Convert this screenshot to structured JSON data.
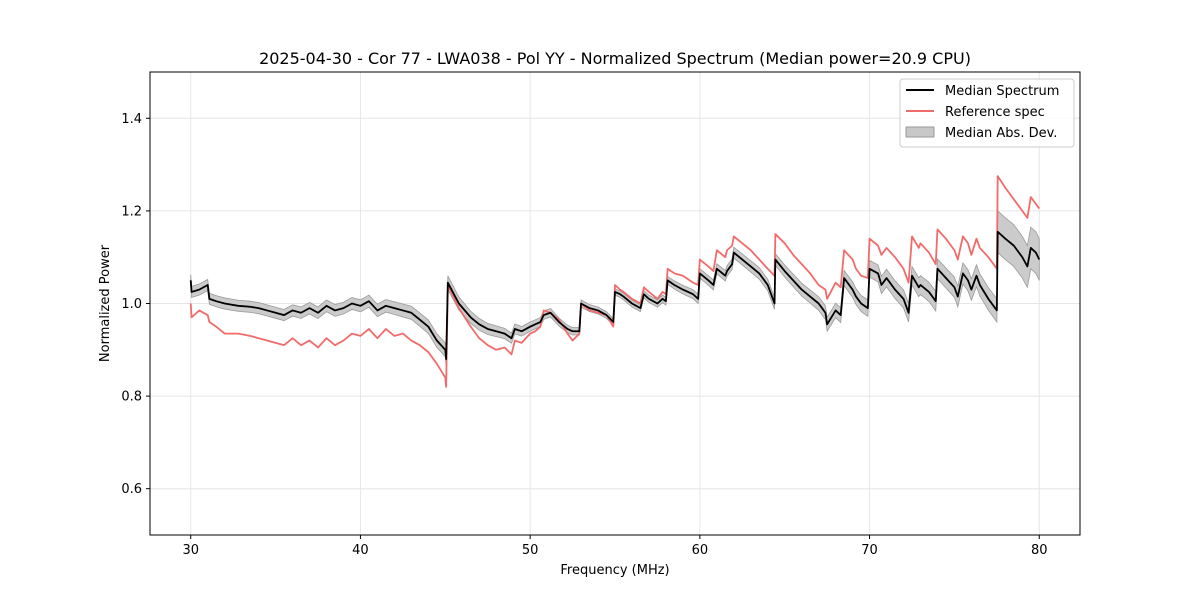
{
  "chart_data": {
    "type": "line",
    "title": "2025-04-30 - Cor 77 - LWA038 - Pol YY - Normalized Spectrum (Median power=20.9 CPU)",
    "xlabel": "Frequency (MHz)",
    "ylabel": "Normalized Power",
    "xlim": [
      27.6,
      82.4
    ],
    "ylim": [
      0.5,
      1.5
    ],
    "xticks": [
      30,
      40,
      50,
      60,
      70,
      80
    ],
    "yticks": [
      0.6,
      0.8,
      1.0,
      1.2,
      1.4
    ],
    "xtick_labels": [
      "30",
      "40",
      "50",
      "60",
      "70",
      "80"
    ],
    "ytick_labels": [
      "0.6",
      "0.8",
      "1.0",
      "1.2",
      "1.4"
    ],
    "grid": true,
    "legend_position": "top-right",
    "colors": {
      "median": "#000000",
      "reference": "#f26b6b",
      "mad_fill": "#c8c8c8",
      "mad_edge": "#9a9a9a"
    },
    "legend": [
      "Median Spectrum",
      "Reference spec",
      "Median Abs. Dev."
    ],
    "series": [
      {
        "name": "Median Spectrum",
        "x": [
          30.0,
          30.05,
          30.5,
          31.0,
          31.1,
          31.5,
          32.0,
          32.8,
          33.5,
          34.0,
          34.5,
          35.0,
          35.5,
          36.0,
          36.5,
          37.0,
          37.5,
          38.0,
          38.5,
          39.0,
          39.5,
          40.0,
          40.5,
          41.0,
          41.5,
          42.0,
          42.5,
          43.0,
          43.5,
          44.0,
          44.5,
          45.0,
          45.05,
          45.15,
          45.8,
          46.5,
          47.0,
          47.5,
          48.0,
          48.5,
          48.9,
          49.1,
          49.5,
          50.0,
          50.3,
          50.6,
          50.8,
          51.2,
          51.7,
          52.2,
          52.5,
          52.9,
          53.0,
          53.5,
          54.0,
          54.5,
          54.9,
          55.0,
          55.3,
          55.5,
          56.0,
          56.5,
          56.7,
          57.0,
          57.5,
          57.8,
          58.0,
          58.1,
          58.5,
          59.0,
          59.6,
          59.9,
          60.0,
          60.5,
          60.8,
          61.0,
          61.5,
          61.6,
          61.9,
          62.0,
          62.5,
          63.0,
          63.5,
          64.0,
          64.4,
          64.45,
          65.0,
          65.5,
          66.0,
          66.5,
          67.0,
          67.4,
          67.5,
          68.0,
          68.3,
          68.5,
          69.0,
          69.2,
          69.5,
          69.9,
          70.0,
          70.5,
          70.7,
          71.0,
          71.5,
          72.0,
          72.3,
          72.5,
          72.9,
          73.0,
          73.5,
          73.9,
          74.0,
          74.5,
          75.0,
          75.2,
          75.5,
          75.8,
          76.0,
          76.3,
          76.5,
          77.0,
          77.5,
          77.55,
          78.0,
          78.5,
          79.0,
          79.3,
          79.5,
          79.8,
          80.0
        ],
        "values": [
          1.05,
          1.025,
          1.03,
          1.04,
          1.01,
          1.005,
          1.0,
          0.995,
          0.993,
          0.99,
          0.985,
          0.98,
          0.975,
          0.985,
          0.98,
          0.99,
          0.98,
          0.995,
          0.985,
          0.99,
          1.0,
          0.995,
          1.005,
          0.985,
          0.995,
          0.99,
          0.985,
          0.98,
          0.965,
          0.95,
          0.92,
          0.9,
          0.88,
          1.045,
          1.0,
          0.97,
          0.955,
          0.945,
          0.94,
          0.935,
          0.925,
          0.945,
          0.94,
          0.95,
          0.955,
          0.96,
          0.975,
          0.98,
          0.96,
          0.945,
          0.94,
          0.94,
          1.0,
          0.99,
          0.985,
          0.975,
          0.96,
          1.025,
          1.02,
          1.015,
          1.0,
          0.99,
          1.02,
          1.01,
          1.0,
          1.01,
          1.005,
          1.05,
          1.04,
          1.03,
          1.02,
          1.01,
          1.065,
          1.05,
          1.04,
          1.075,
          1.06,
          1.07,
          1.085,
          1.11,
          1.095,
          1.08,
          1.065,
          1.04,
          1.0,
          1.095,
          1.07,
          1.05,
          1.03,
          1.015,
          1.0,
          0.98,
          0.955,
          0.985,
          0.975,
          1.055,
          1.03,
          1.015,
          1.0,
          0.99,
          1.075,
          1.065,
          1.04,
          1.055,
          1.03,
          1.01,
          0.98,
          1.06,
          1.035,
          1.04,
          1.025,
          1.005,
          1.075,
          1.055,
          1.035,
          1.015,
          1.065,
          1.05,
          1.03,
          1.06,
          1.04,
          1.01,
          0.985,
          1.155,
          1.14,
          1.125,
          1.1,
          1.08,
          1.12,
          1.11,
          1.095
        ]
      },
      {
        "name": "Reference spec",
        "x": [
          30.0,
          30.05,
          30.5,
          31.0,
          31.1,
          31.5,
          32.0,
          32.8,
          33.5,
          34.0,
          34.5,
          35.0,
          35.5,
          36.0,
          36.5,
          37.0,
          37.5,
          38.0,
          38.5,
          39.0,
          39.5,
          40.0,
          40.5,
          41.0,
          41.5,
          42.0,
          42.5,
          43.0,
          43.5,
          44.0,
          44.5,
          45.0,
          45.05,
          45.15,
          45.8,
          46.5,
          47.0,
          47.5,
          48.0,
          48.5,
          48.9,
          49.1,
          49.5,
          50.0,
          50.3,
          50.6,
          50.8,
          51.2,
          51.7,
          52.2,
          52.5,
          52.9,
          53.0,
          53.5,
          54.0,
          54.5,
          54.9,
          55.0,
          55.3,
          55.5,
          56.0,
          56.5,
          56.7,
          57.0,
          57.5,
          57.8,
          58.0,
          58.1,
          58.5,
          59.0,
          59.6,
          59.9,
          60.0,
          60.5,
          60.8,
          61.0,
          61.5,
          61.6,
          61.9,
          62.0,
          62.5,
          63.0,
          63.5,
          64.0,
          64.4,
          64.45,
          65.0,
          65.5,
          66.0,
          66.5,
          67.0,
          67.4,
          67.5,
          68.0,
          68.3,
          68.5,
          69.0,
          69.2,
          69.5,
          69.9,
          70.0,
          70.5,
          70.7,
          71.0,
          71.5,
          72.0,
          72.3,
          72.5,
          72.9,
          73.0,
          73.5,
          73.9,
          74.0,
          74.5,
          75.0,
          75.2,
          75.5,
          75.8,
          76.0,
          76.3,
          76.5,
          77.0,
          77.5,
          77.55,
          78.0,
          78.5,
          79.0,
          79.3,
          79.5,
          79.8,
          80.0
        ],
        "values": [
          1.0,
          0.97,
          0.985,
          0.975,
          0.96,
          0.95,
          0.935,
          0.935,
          0.93,
          0.925,
          0.92,
          0.915,
          0.91,
          0.925,
          0.91,
          0.92,
          0.905,
          0.925,
          0.91,
          0.92,
          0.935,
          0.93,
          0.945,
          0.925,
          0.945,
          0.93,
          0.935,
          0.92,
          0.91,
          0.895,
          0.87,
          0.84,
          0.82,
          1.04,
          0.99,
          0.95,
          0.925,
          0.91,
          0.9,
          0.905,
          0.89,
          0.92,
          0.915,
          0.935,
          0.94,
          0.95,
          0.985,
          0.98,
          0.965,
          0.935,
          0.92,
          0.935,
          1.0,
          0.985,
          0.98,
          0.975,
          0.95,
          1.04,
          1.03,
          1.025,
          1.01,
          1.0,
          1.035,
          1.025,
          1.01,
          1.025,
          1.02,
          1.075,
          1.065,
          1.06,
          1.045,
          1.04,
          1.095,
          1.08,
          1.07,
          1.115,
          1.1,
          1.115,
          1.125,
          1.145,
          1.13,
          1.115,
          1.095,
          1.075,
          1.06,
          1.15,
          1.13,
          1.105,
          1.085,
          1.065,
          1.04,
          1.03,
          1.01,
          1.045,
          1.035,
          1.115,
          1.095,
          1.075,
          1.06,
          1.055,
          1.14,
          1.125,
          1.105,
          1.12,
          1.1,
          1.075,
          1.045,
          1.145,
          1.12,
          1.13,
          1.11,
          1.085,
          1.16,
          1.14,
          1.115,
          1.095,
          1.145,
          1.13,
          1.105,
          1.14,
          1.12,
          1.1,
          1.075,
          1.275,
          1.25,
          1.225,
          1.2,
          1.185,
          1.23,
          1.215,
          1.205
        ]
      },
      {
        "name": "Median Abs. Dev.",
        "x": [
          30.0,
          35.0,
          40.0,
          45.0,
          47.5,
          50.0,
          52.5,
          55.0,
          57.5,
          60.0,
          62.5,
          65.0,
          67.5,
          70.0,
          72.5,
          75.0,
          77.5,
          77.55,
          80.0
        ],
        "values": [
          0.012,
          0.012,
          0.013,
          0.015,
          0.012,
          0.01,
          0.008,
          0.007,
          0.008,
          0.01,
          0.012,
          0.013,
          0.015,
          0.018,
          0.02,
          0.022,
          0.025,
          0.045,
          0.045
        ]
      }
    ]
  }
}
